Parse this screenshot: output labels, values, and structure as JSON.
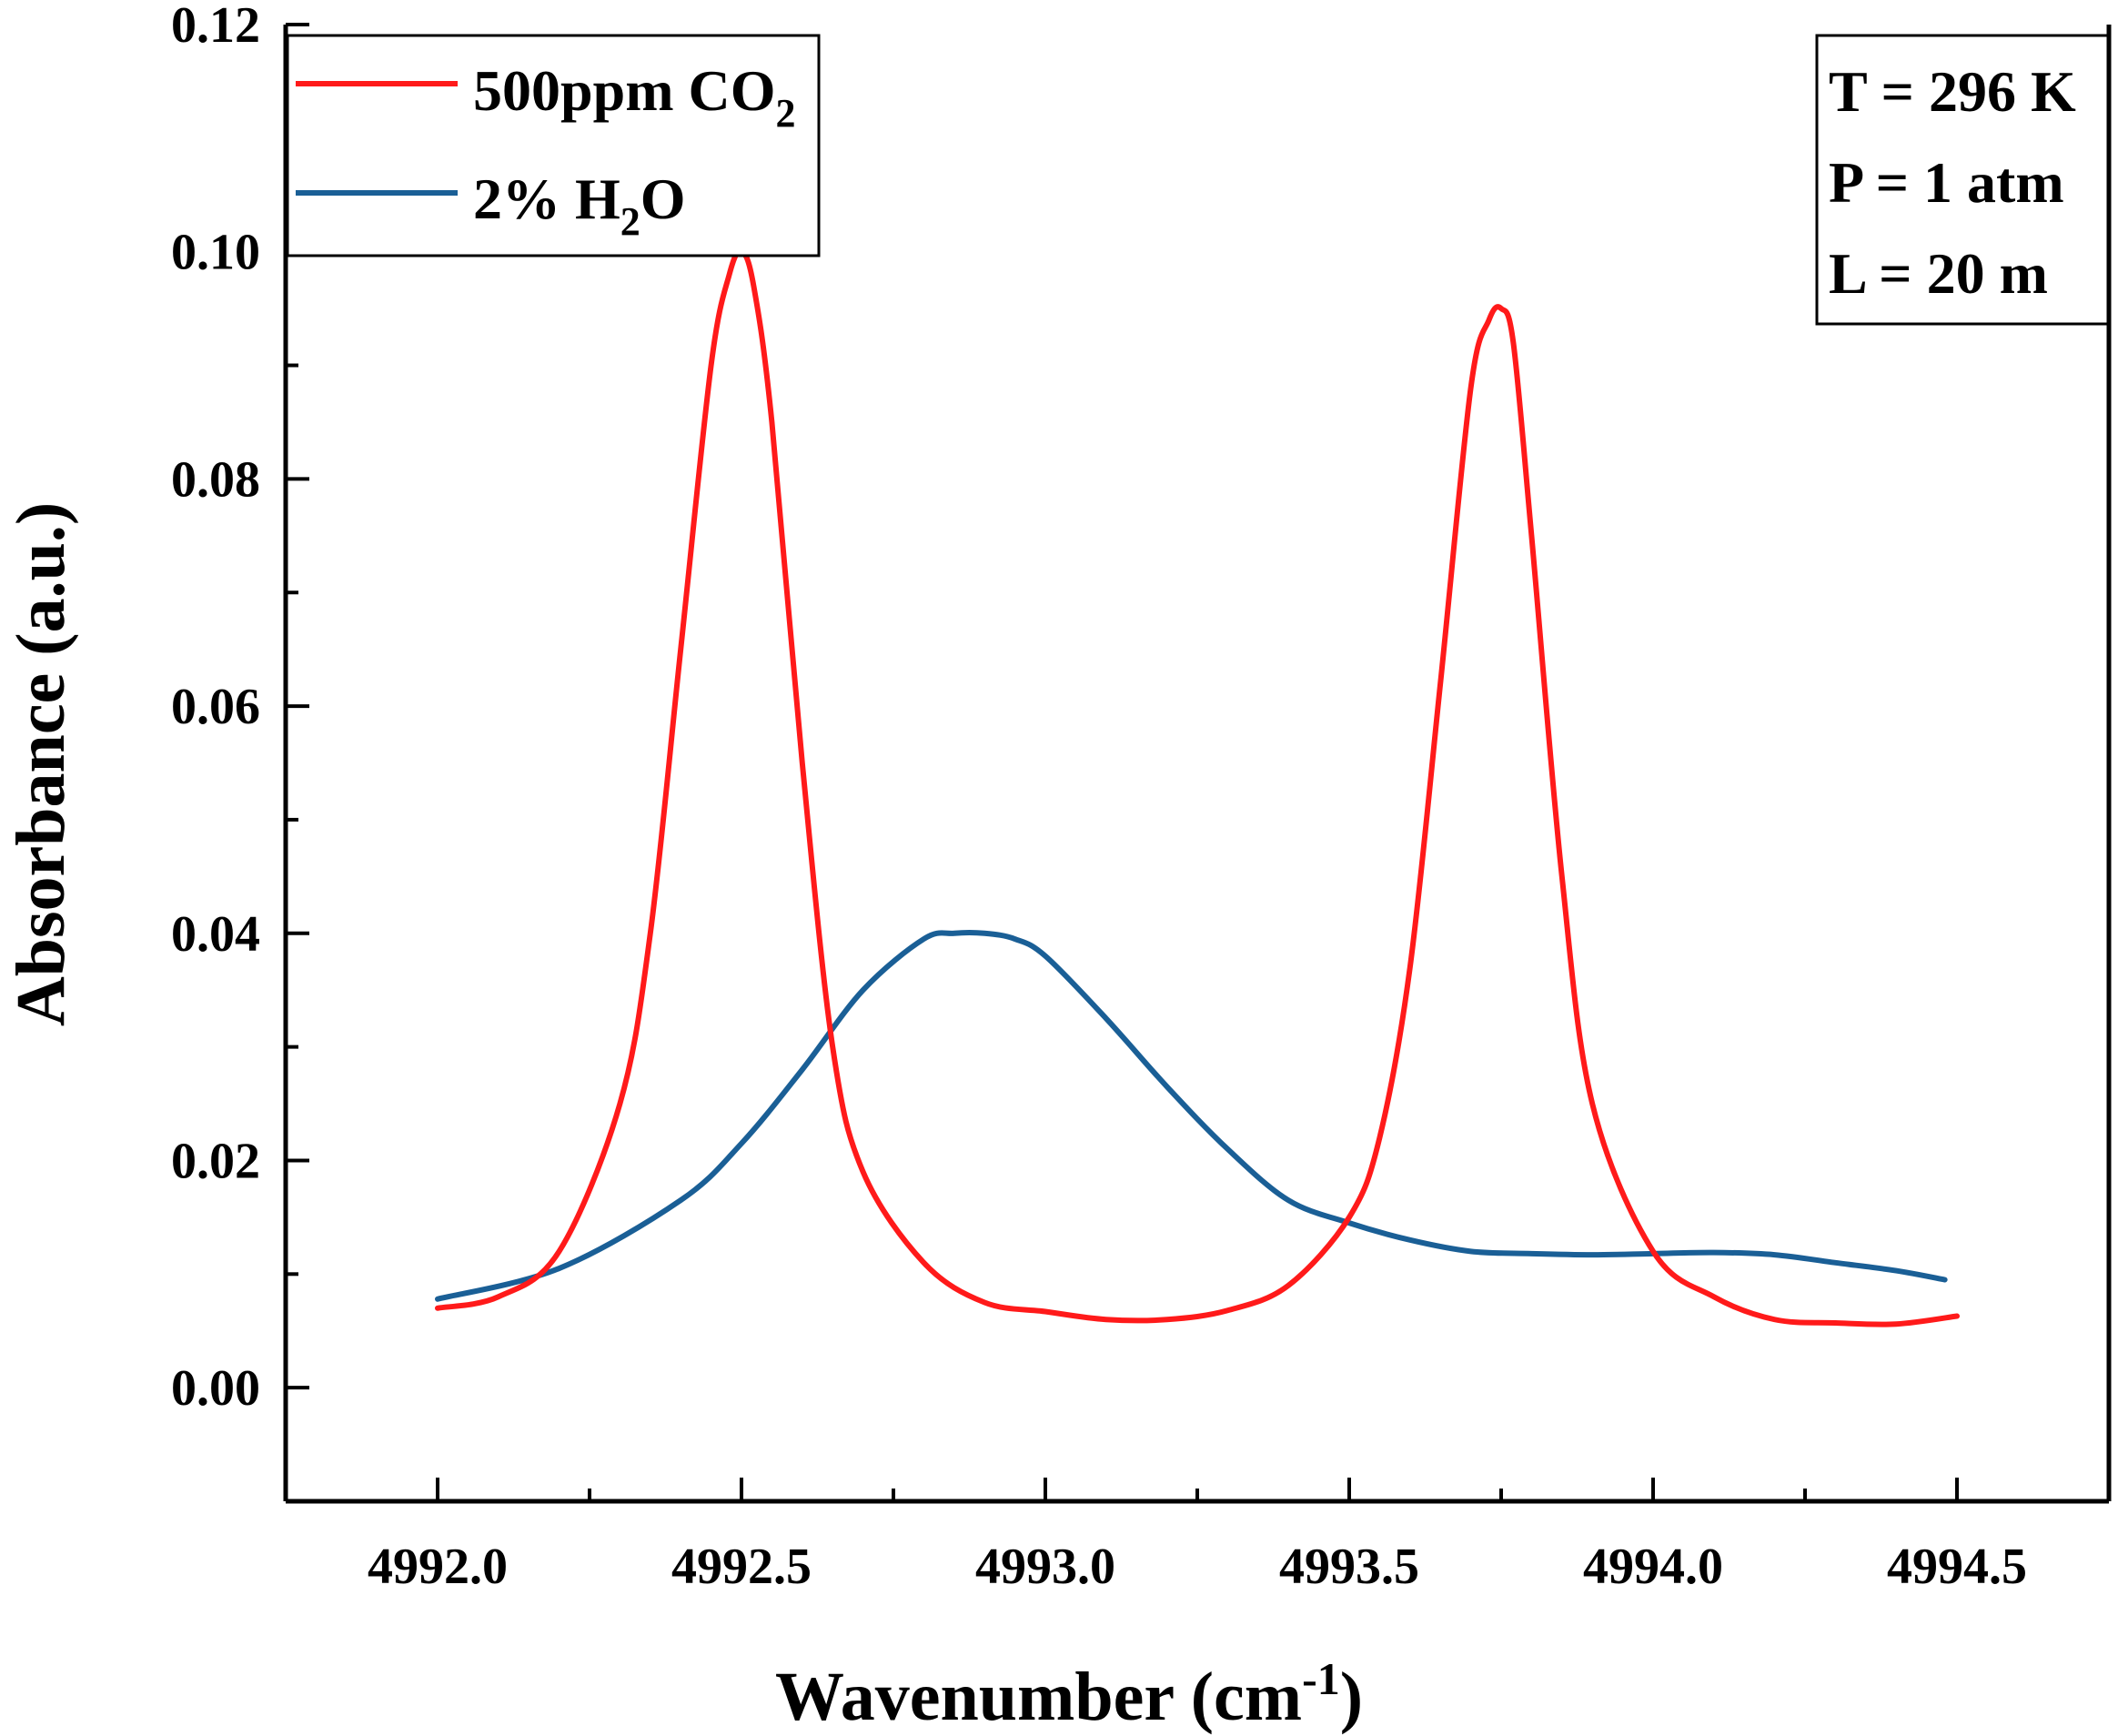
{
  "chart_data": {
    "type": "line",
    "xlabel": "Wavenumber (cm",
    "xlabel_sup": "-1",
    "xlabel_close": ")",
    "ylabel": "Absorbance (a.u.)",
    "xlim": [
      4991.75,
      4994.75
    ],
    "ylim": [
      -0.01,
      0.12
    ],
    "x_ticks": [
      "4992.0",
      "4992.5",
      "4993.0",
      "4993.5",
      "4994.0",
      "4994.5"
    ],
    "y_ticks": [
      "0.00",
      "0.02",
      "0.04",
      "0.06",
      "0.08",
      "0.10",
      "0.12"
    ],
    "series": [
      {
        "name": "500ppm CO2",
        "legend": {
          "prefix": "500ppm CO",
          "sub": "2",
          "suffix": ""
        },
        "color": "#ff1a1a",
        "x": [
          4992.0,
          4992.1,
          4992.2,
          4992.3,
          4992.35,
          4992.4,
          4992.45,
          4992.48,
          4992.5,
          4992.52,
          4992.55,
          4992.6,
          4992.65,
          4992.7,
          4992.8,
          4992.9,
          4993.0,
          4993.1,
          4993.2,
          4993.3,
          4993.4,
          4993.5,
          4993.55,
          4993.6,
          4993.65,
          4993.7,
          4993.73,
          4993.75,
          4993.77,
          4993.8,
          4993.85,
          4993.9,
          4994.0,
          4994.1,
          4994.2,
          4994.3,
          4994.4,
          4994.5
        ],
        "y": [
          0.007,
          0.008,
          0.012,
          0.025,
          0.04,
          0.065,
          0.09,
          0.098,
          0.1,
          0.097,
          0.085,
          0.055,
          0.03,
          0.019,
          0.011,
          0.0075,
          0.0067,
          0.006,
          0.006,
          0.0068,
          0.009,
          0.015,
          0.022,
          0.037,
          0.062,
          0.088,
          0.094,
          0.095,
          0.092,
          0.075,
          0.045,
          0.025,
          0.012,
          0.008,
          0.006,
          0.0057,
          0.0056,
          0.0063
        ]
      },
      {
        "name": "2% H2O",
        "legend": {
          "prefix": "2% H",
          "sub": "2",
          "suffix": "O"
        },
        "color": "#1a5f96",
        "x": [
          4992.0,
          4992.2,
          4992.4,
          4992.5,
          4992.6,
          4992.7,
          4992.8,
          4992.85,
          4992.9,
          4992.95,
          4993.0,
          4993.1,
          4993.2,
          4993.3,
          4993.4,
          4993.5,
          4993.6,
          4993.7,
          4993.8,
          4993.9,
          4994.0,
          4994.1,
          4994.2,
          4994.3,
          4994.4,
          4994.48
        ],
        "y": [
          0.0078,
          0.0105,
          0.0165,
          0.0215,
          0.028,
          0.035,
          0.0395,
          0.04,
          0.04,
          0.0395,
          0.038,
          0.0325,
          0.0265,
          0.021,
          0.0165,
          0.0145,
          0.013,
          0.012,
          0.0118,
          0.0117,
          0.0118,
          0.0119,
          0.0117,
          0.011,
          0.0103,
          0.0095
        ]
      }
    ],
    "annotations": [
      "T = 296 K",
      "P = 1 atm",
      "L = 20 m"
    ]
  }
}
